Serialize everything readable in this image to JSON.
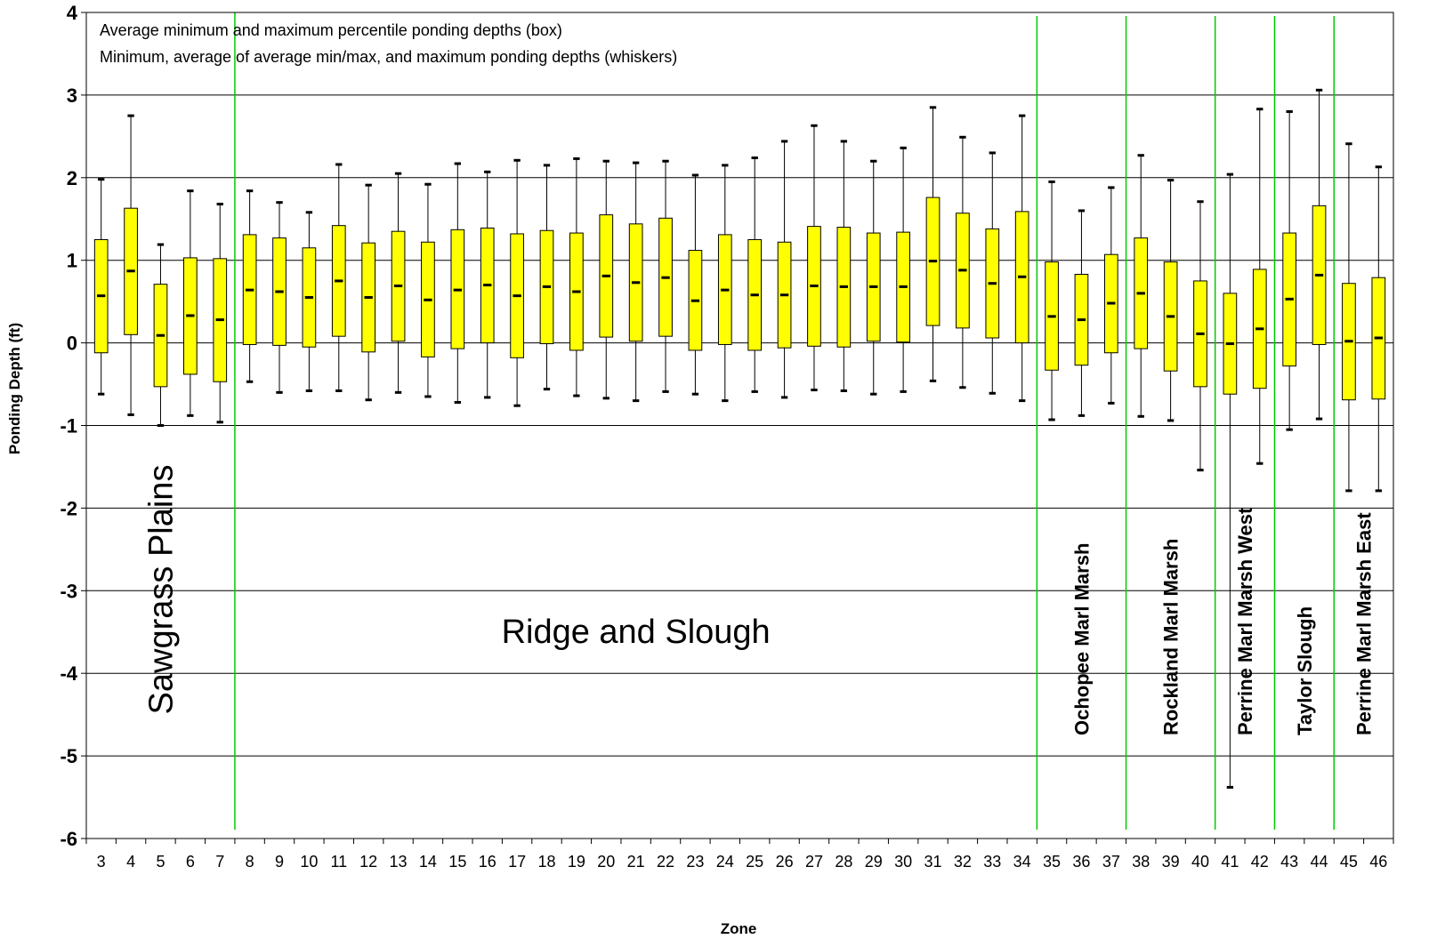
{
  "chart_data": {
    "type": "box",
    "xlabel": "Zone",
    "ylabel": "Ponding Depth (ft)",
    "ylim": [
      -6,
      4
    ],
    "yticks": [
      4,
      3,
      2,
      1,
      0,
      -1,
      -2,
      -3,
      -4,
      -5,
      -6
    ],
    "grid": "horizontal",
    "annotations": [
      "Average minimum and maximum percentile ponding depths (box)",
      "Minimum, average of average min/max, and maximum ponding depths (whiskers)"
    ],
    "box_color": "#ffff00",
    "divider_color": "#00cc00",
    "zones": [
      {
        "zone": "3",
        "min": -0.62,
        "q1": -0.12,
        "mid": 0.57,
        "q3": 1.25,
        "max": 1.98
      },
      {
        "zone": "4",
        "min": -0.87,
        "q1": 0.1,
        "mid": 0.87,
        "q3": 1.63,
        "max": 2.75
      },
      {
        "zone": "5",
        "min": -1.0,
        "q1": -0.53,
        "mid": 0.09,
        "q3": 0.71,
        "max": 1.19
      },
      {
        "zone": "6",
        "min": -0.88,
        "q1": -0.38,
        "mid": 0.33,
        "q3": 1.03,
        "max": 1.84
      },
      {
        "zone": "7",
        "min": -0.96,
        "q1": -0.47,
        "mid": 0.28,
        "q3": 1.02,
        "max": 1.68
      },
      {
        "zone": "8",
        "min": -0.47,
        "q1": -0.02,
        "mid": 0.64,
        "q3": 1.31,
        "max": 1.84
      },
      {
        "zone": "9",
        "min": -0.6,
        "q1": -0.03,
        "mid": 0.62,
        "q3": 1.27,
        "max": 1.7
      },
      {
        "zone": "10",
        "min": -0.58,
        "q1": -0.05,
        "mid": 0.55,
        "q3": 1.15,
        "max": 1.58
      },
      {
        "zone": "11",
        "min": -0.58,
        "q1": 0.08,
        "mid": 0.75,
        "q3": 1.42,
        "max": 2.16
      },
      {
        "zone": "12",
        "min": -0.69,
        "q1": -0.11,
        "mid": 0.55,
        "q3": 1.21,
        "max": 1.91
      },
      {
        "zone": "13",
        "min": -0.6,
        "q1": 0.02,
        "mid": 0.69,
        "q3": 1.35,
        "max": 2.05
      },
      {
        "zone": "14",
        "min": -0.65,
        "q1": -0.17,
        "mid": 0.52,
        "q3": 1.22,
        "max": 1.92
      },
      {
        "zone": "15",
        "min": -0.72,
        "q1": -0.07,
        "mid": 0.64,
        "q3": 1.37,
        "max": 2.17
      },
      {
        "zone": "16",
        "min": -0.66,
        "q1": 0.0,
        "mid": 0.7,
        "q3": 1.39,
        "max": 2.07
      },
      {
        "zone": "17",
        "min": -0.76,
        "q1": -0.18,
        "mid": 0.57,
        "q3": 1.32,
        "max": 2.21
      },
      {
        "zone": "18",
        "min": -0.56,
        "q1": -0.01,
        "mid": 0.68,
        "q3": 1.36,
        "max": 2.15
      },
      {
        "zone": "19",
        "min": -0.64,
        "q1": -0.09,
        "mid": 0.62,
        "q3": 1.33,
        "max": 2.23
      },
      {
        "zone": "20",
        "min": -0.67,
        "q1": 0.07,
        "mid": 0.81,
        "q3": 1.55,
        "max": 2.2
      },
      {
        "zone": "21",
        "min": -0.7,
        "q1": 0.02,
        "mid": 0.73,
        "q3": 1.44,
        "max": 2.18
      },
      {
        "zone": "22",
        "min": -0.59,
        "q1": 0.08,
        "mid": 0.79,
        "q3": 1.51,
        "max": 2.2
      },
      {
        "zone": "23",
        "min": -0.62,
        "q1": -0.09,
        "mid": 0.51,
        "q3": 1.12,
        "max": 2.03
      },
      {
        "zone": "24",
        "min": -0.7,
        "q1": -0.02,
        "mid": 0.64,
        "q3": 1.31,
        "max": 2.15
      },
      {
        "zone": "25",
        "min": -0.59,
        "q1": -0.09,
        "mid": 0.58,
        "q3": 1.25,
        "max": 2.24
      },
      {
        "zone": "26",
        "min": -0.66,
        "q1": -0.06,
        "mid": 0.58,
        "q3": 1.22,
        "max": 2.44
      },
      {
        "zone": "27",
        "min": -0.57,
        "q1": -0.04,
        "mid": 0.69,
        "q3": 1.41,
        "max": 2.63
      },
      {
        "zone": "28",
        "min": -0.58,
        "q1": -0.05,
        "mid": 0.68,
        "q3": 1.4,
        "max": 2.44
      },
      {
        "zone": "29",
        "min": -0.62,
        "q1": 0.02,
        "mid": 0.68,
        "q3": 1.33,
        "max": 2.2
      },
      {
        "zone": "30",
        "min": -0.59,
        "q1": 0.01,
        "mid": 0.68,
        "q3": 1.34,
        "max": 2.36
      },
      {
        "zone": "31",
        "min": -0.46,
        "q1": 0.21,
        "mid": 0.99,
        "q3": 1.76,
        "max": 2.85
      },
      {
        "zone": "32",
        "min": -0.54,
        "q1": 0.18,
        "mid": 0.88,
        "q3": 1.57,
        "max": 2.49
      },
      {
        "zone": "33",
        "min": -0.61,
        "q1": 0.06,
        "mid": 0.72,
        "q3": 1.38,
        "max": 2.3
      },
      {
        "zone": "34",
        "min": -0.7,
        "q1": 0.0,
        "mid": 0.8,
        "q3": 1.59,
        "max": 2.75
      },
      {
        "zone": "35",
        "min": -0.93,
        "q1": -0.33,
        "mid": 0.32,
        "q3": 0.98,
        "max": 1.95
      },
      {
        "zone": "36",
        "min": -0.88,
        "q1": -0.27,
        "mid": 0.28,
        "q3": 0.83,
        "max": 1.6
      },
      {
        "zone": "37",
        "min": -0.73,
        "q1": -0.12,
        "mid": 0.48,
        "q3": 1.07,
        "max": 1.88
      },
      {
        "zone": "38",
        "min": -0.89,
        "q1": -0.07,
        "mid": 0.6,
        "q3": 1.27,
        "max": 2.27
      },
      {
        "zone": "39",
        "min": -0.94,
        "q1": -0.34,
        "mid": 0.32,
        "q3": 0.98,
        "max": 1.97
      },
      {
        "zone": "40",
        "min": -1.54,
        "q1": -0.53,
        "mid": 0.11,
        "q3": 0.75,
        "max": 1.71
      },
      {
        "zone": "41",
        "min": -5.38,
        "q1": -0.62,
        "mid": -0.01,
        "q3": 0.6,
        "max": 2.04
      },
      {
        "zone": "42",
        "min": -1.46,
        "q1": -0.55,
        "mid": 0.17,
        "q3": 0.89,
        "max": 2.83
      },
      {
        "zone": "43",
        "min": -1.05,
        "q1": -0.28,
        "mid": 0.53,
        "q3": 1.33,
        "max": 2.8
      },
      {
        "zone": "44",
        "min": -0.92,
        "q1": -0.02,
        "mid": 0.82,
        "q3": 1.66,
        "max": 3.06
      },
      {
        "zone": "45",
        "min": -1.79,
        "q1": -0.69,
        "mid": 0.02,
        "q3": 0.72,
        "max": 2.41
      },
      {
        "zone": "46",
        "min": -1.79,
        "q1": -0.68,
        "mid": 0.06,
        "q3": 0.79,
        "max": 2.13
      }
    ],
    "dividers_after_zone": [
      "7",
      "34",
      "37",
      "40",
      "42",
      "44"
    ],
    "regions": [
      {
        "label": "Sawgrass Plains",
        "style": "big",
        "orientation": "vertical"
      },
      {
        "label": "Ridge and Slough",
        "style": "big",
        "orientation": "horizontal"
      },
      {
        "label": "Ochopee Marl Marsh",
        "style": "bold",
        "orientation": "vertical"
      },
      {
        "label": "Rockland Marl Marsh",
        "style": "bold",
        "orientation": "vertical"
      },
      {
        "label": "Perrine Marl Marsh West",
        "style": "bold",
        "orientation": "vertical"
      },
      {
        "label": "Taylor Slough",
        "style": "bold",
        "orientation": "vertical"
      },
      {
        "label": "Perrine Marl Marsh East",
        "style": "bold",
        "orientation": "vertical"
      }
    ]
  }
}
